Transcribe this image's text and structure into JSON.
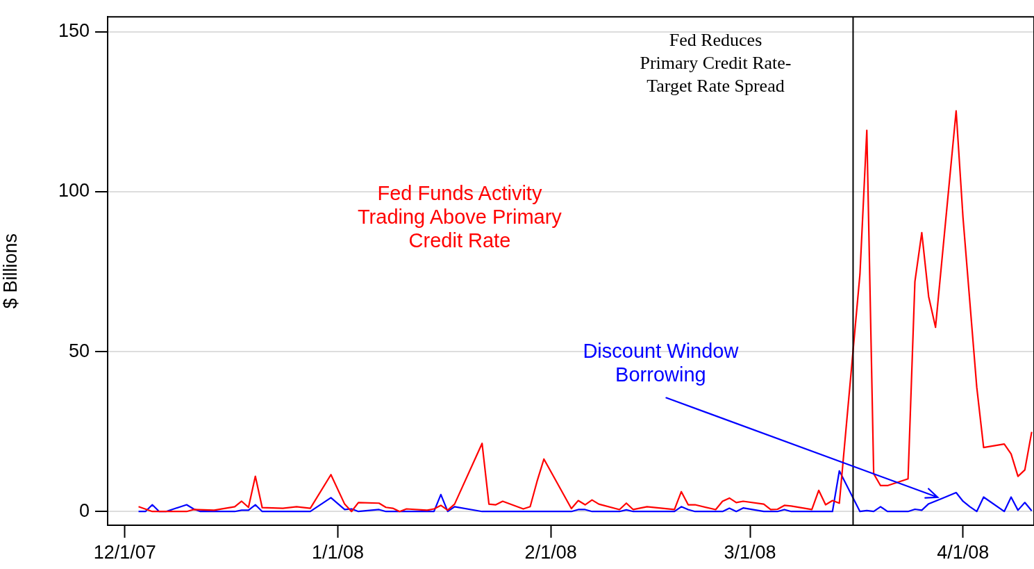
{
  "chart_data": {
    "type": "line",
    "ylabel": "$ Billions",
    "xlim": [
      "2007-11-28T12:00",
      "2008-04-11T08:00"
    ],
    "xticks": [
      {
        "value": "2007-12-01",
        "label": "12/1/07"
      },
      {
        "value": "2008-01-01",
        "label": "1/1/08"
      },
      {
        "value": "2008-02-01",
        "label": "2/1/08"
      },
      {
        "value": "2008-03-01",
        "label": "3/1/08"
      },
      {
        "value": "2008-04-01",
        "label": "4/1/08"
      }
    ],
    "ylim": [
      -4.3,
      154.7
    ],
    "yticks": [
      0,
      50,
      100,
      150
    ],
    "grid": "y",
    "legend": false,
    "marker": "none",
    "line_style": "solid",
    "ref_lines": [
      {
        "axis": "x",
        "value": "2008-03-16",
        "label": "Fed Reduces\nPrimary Credit Rate-\nTarget Rate Spread",
        "color": "#000000"
      }
    ],
    "series": [
      {
        "name": "Fed Funds Activity\nTrading Above Primary\nCredit Rate",
        "color": "#ff0000",
        "x": [
          "2007-12-03",
          "2007-12-05",
          "2007-12-10",
          "2007-12-11",
          "2007-12-14",
          "2007-12-17",
          "2007-12-18",
          "2007-12-19",
          "2007-12-20",
          "2007-12-21",
          "2007-12-24",
          "2007-12-26",
          "2007-12-28",
          "2007-12-31",
          "2008-01-02",
          "2008-01-03",
          "2008-01-04",
          "2008-01-07",
          "2008-01-08",
          "2008-01-09",
          "2008-01-10",
          "2008-01-11",
          "2008-01-14",
          "2008-01-15",
          "2008-01-16",
          "2008-01-17",
          "2008-01-18",
          "2008-01-22",
          "2008-01-23",
          "2008-01-24",
          "2008-01-25",
          "2008-01-28",
          "2008-01-29",
          "2008-01-30",
          "2008-01-31",
          "2008-02-04",
          "2008-02-05",
          "2008-02-06",
          "2008-02-07",
          "2008-02-08",
          "2008-02-11",
          "2008-02-12",
          "2008-02-13",
          "2008-02-15",
          "2008-02-19",
          "2008-02-20",
          "2008-02-21",
          "2008-02-22",
          "2008-02-25",
          "2008-02-26",
          "2008-02-27",
          "2008-02-28",
          "2008-02-29",
          "2008-03-03",
          "2008-03-04",
          "2008-03-05",
          "2008-03-06",
          "2008-03-07",
          "2008-03-10",
          "2008-03-11",
          "2008-03-12",
          "2008-03-13",
          "2008-03-14",
          "2008-03-17",
          "2008-03-18",
          "2008-03-19",
          "2008-03-20",
          "2008-03-21",
          "2008-03-24",
          "2008-03-25",
          "2008-03-26",
          "2008-03-27",
          "2008-03-28",
          "2008-03-31",
          "2008-04-01",
          "2008-04-03",
          "2008-04-04",
          "2008-04-07",
          "2008-04-08",
          "2008-04-09",
          "2008-04-10",
          "2008-04-11"
        ],
        "values": [
          1.5,
          0,
          0,
          0.6,
          0.4,
          1.5,
          3.2,
          1.3,
          11,
          1.2,
          1,
          1.5,
          1,
          11.5,
          2.3,
          0,
          2.8,
          2.6,
          1.3,
          1,
          0,
          0.8,
          0.4,
          0.8,
          1.9,
          0.4,
          2.3,
          21.3,
          2.3,
          2.1,
          3.2,
          0.8,
          1.5,
          9.4,
          16.4,
          0.9,
          3.4,
          2.1,
          3.6,
          2.3,
          0.6,
          2.6,
          0.6,
          1.5,
          0.6,
          6.2,
          2.1,
          2.1,
          0.6,
          3.2,
          4.2,
          2.8,
          3.2,
          2.3,
          0.6,
          0.7,
          1.9,
          1.7,
          0.6,
          6.6,
          2.1,
          3.4,
          2.6,
          74.2,
          119.2,
          11.8,
          8.1,
          8.1,
          10.2,
          71.9,
          87.2,
          67.2,
          57.6,
          125.3,
          91.9,
          38.9,
          20,
          21.1,
          18,
          11,
          13,
          24.9
        ]
      },
      {
        "name": "Discount Window\nBorrowing",
        "color": "#0000ff",
        "x": [
          "2007-12-03",
          "2007-12-04",
          "2007-12-05",
          "2007-12-06",
          "2007-12-07",
          "2007-12-10",
          "2007-12-11",
          "2007-12-12",
          "2007-12-17",
          "2007-12-18",
          "2007-12-19",
          "2007-12-20",
          "2007-12-21",
          "2007-12-28",
          "2007-12-31",
          "2008-01-02",
          "2008-01-03",
          "2008-01-04",
          "2008-01-07",
          "2008-01-08",
          "2008-01-15",
          "2008-01-16",
          "2008-01-17",
          "2008-01-18",
          "2008-01-22",
          "2008-02-04",
          "2008-02-05",
          "2008-02-06",
          "2008-02-07",
          "2008-02-11",
          "2008-02-12",
          "2008-02-13",
          "2008-02-19",
          "2008-02-20",
          "2008-02-21",
          "2008-02-22",
          "2008-02-26",
          "2008-02-27",
          "2008-02-28",
          "2008-02-29",
          "2008-03-03",
          "2008-03-05",
          "2008-03-06",
          "2008-03-07",
          "2008-03-12",
          "2008-03-13",
          "2008-03-14",
          "2008-03-17",
          "2008-03-18",
          "2008-03-19",
          "2008-03-20",
          "2008-03-21",
          "2008-03-24",
          "2008-03-25",
          "2008-03-26",
          "2008-03-27",
          "2008-03-29",
          "2008-03-31",
          "2008-04-01",
          "2008-04-02",
          "2008-04-03",
          "2008-04-04",
          "2008-04-07",
          "2008-04-08",
          "2008-04-09",
          "2008-04-10",
          "2008-04-11"
        ],
        "values": [
          0,
          0,
          2.1,
          0,
          0,
          2.1,
          0.8,
          0,
          0,
          0.4,
          0.4,
          2.1,
          0,
          0,
          4.3,
          0.6,
          0.8,
          0,
          0.6,
          0,
          0,
          5.3,
          0,
          1.5,
          0,
          0,
          0.6,
          0.6,
          0,
          0,
          0.5,
          0,
          0,
          1.5,
          0.6,
          0,
          0,
          1,
          0,
          1.1,
          0,
          0,
          0.6,
          0,
          0,
          0,
          12.7,
          0,
          0.3,
          0,
          1.5,
          0,
          0,
          0.7,
          0.4,
          2.4,
          4.1,
          5.9,
          3.2,
          1.5,
          0,
          4.5,
          0,
          4.5,
          0.4,
          2.8,
          0.2
        ]
      }
    ]
  }
}
